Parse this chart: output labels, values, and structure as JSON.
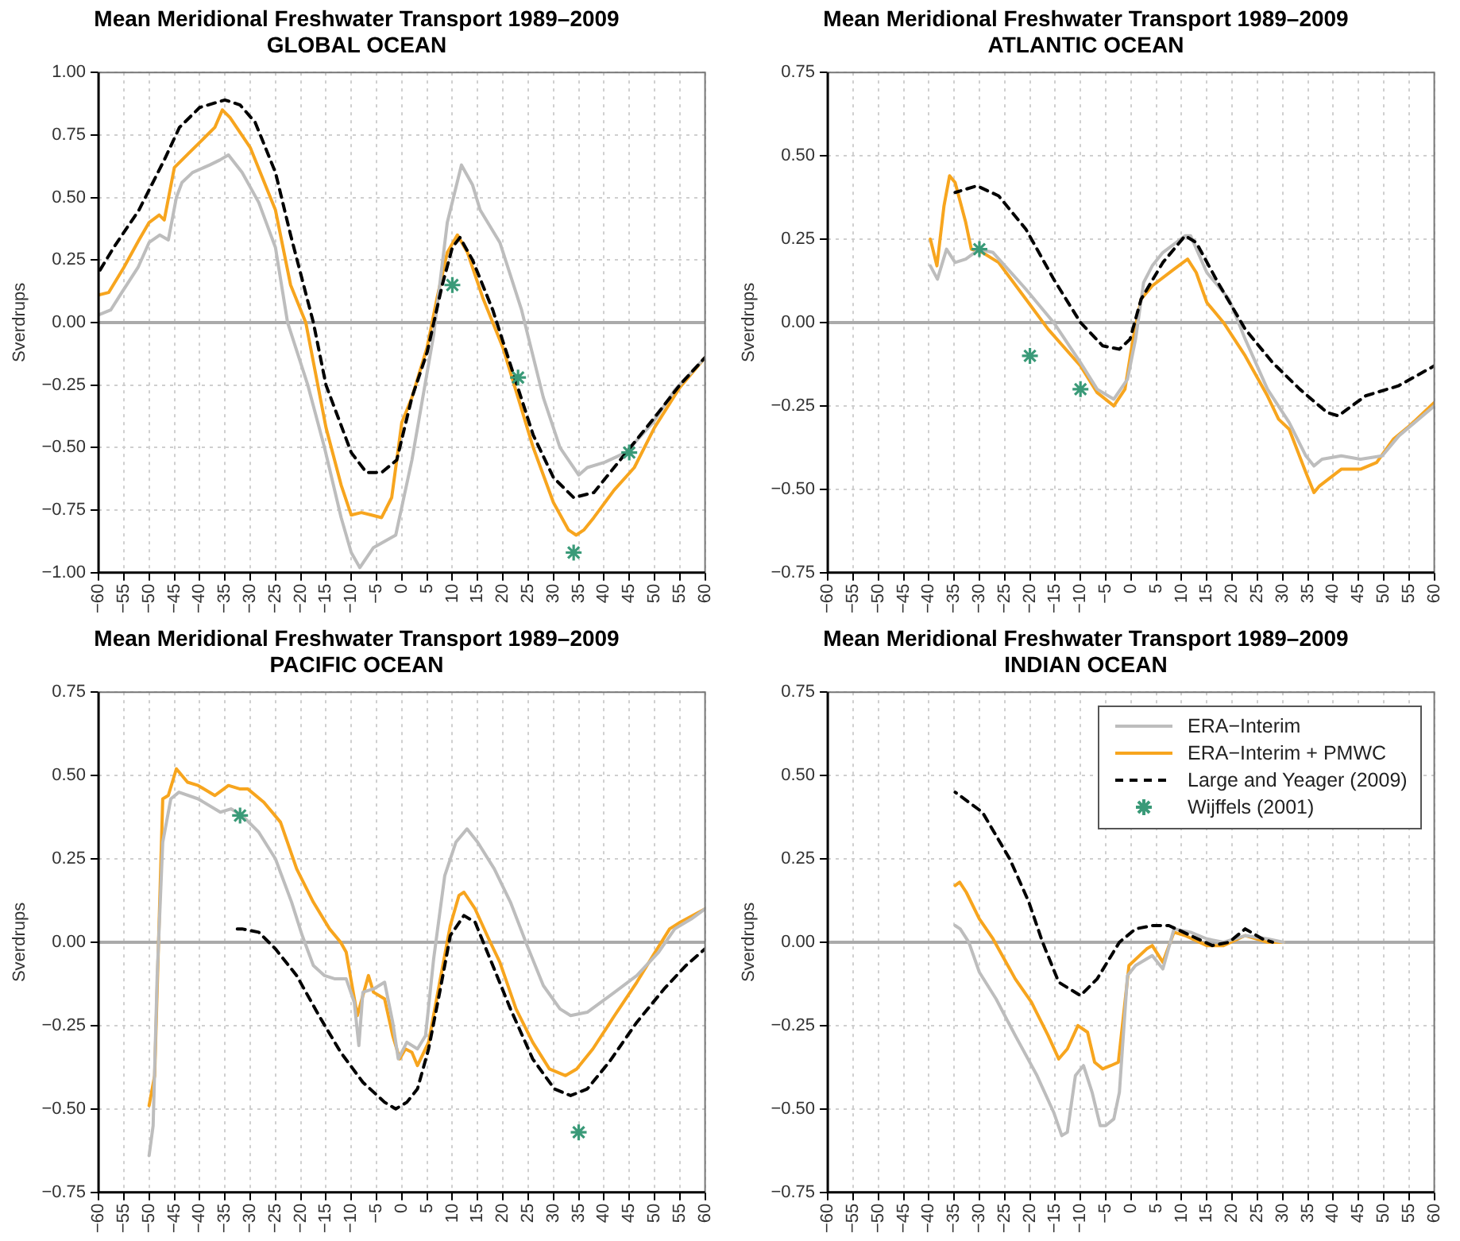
{
  "chart_data": [
    {
      "type": "line",
      "title": "Mean Meridional Freshwater Transport 1989–2009",
      "subtitle": "GLOBAL OCEAN",
      "ylabel": "Sverdrups",
      "xlim": [
        -60,
        60
      ],
      "ylim": [
        -1,
        1
      ],
      "xticks": [
        {
          "value": -60,
          "label": "−60"
        },
        {
          "value": -55,
          "label": "−55"
        },
        {
          "value": -50,
          "label": "−50"
        },
        {
          "value": -45,
          "label": "−45"
        },
        {
          "value": -40,
          "label": "−40"
        },
        {
          "value": -35,
          "label": "−35"
        },
        {
          "value": -30,
          "label": "−30"
        },
        {
          "value": -25,
          "label": "−25"
        },
        {
          "value": -20,
          "label": "−20"
        },
        {
          "value": -15,
          "label": "−15"
        },
        {
          "value": -10,
          "label": "−10"
        },
        {
          "value": -5,
          "label": "−5"
        },
        0,
        5,
        10,
        15,
        20,
        25,
        30,
        35,
        40,
        45,
        50,
        55,
        60
      ],
      "yticks": [
        {
          "value": 1,
          "label": "1.00"
        },
        {
          "value": 0.75,
          "label": "0.75"
        },
        {
          "value": 0.5,
          "label": "0.50"
        },
        {
          "value": 0.25,
          "label": "0.25"
        },
        {
          "value": 0,
          "label": "0.00"
        },
        {
          "value": -0.25,
          "label": "−0.25"
        },
        {
          "value": -0.5,
          "label": "−0.50"
        },
        {
          "value": -0.75,
          "label": "−0.75"
        },
        {
          "value": -1,
          "label": "−1.00"
        }
      ],
      "grid": true,
      "legend": false,
      "ref_lines": [
        {
          "axis": "y",
          "value": 0,
          "color": "#aaaaaa"
        }
      ],
      "series": [
        {
          "type": "line",
          "color": "#bdbdbd",
          "x": [
            -60,
            -57.6,
            -55.4,
            -52.2,
            -50,
            -47.9,
            -46.2,
            -44.6,
            -43.5,
            -41.4,
            -38,
            -36,
            -34.3,
            -31.6,
            -28.3,
            -25,
            -22.6,
            -18.6,
            -15.3,
            -12,
            -10,
            -8.3,
            -5.6,
            -1.2,
            2,
            6.3,
            9,
            11.8,
            14,
            15.5,
            19.4,
            23.7,
            28,
            31.3,
            35,
            36.7,
            40,
            44.3,
            49.7,
            54,
            60
          ],
          "values": [
            0.03,
            0.05,
            0.12,
            0.22,
            0.32,
            0.35,
            0.33,
            0.5,
            0.56,
            0.6,
            0.63,
            0.65,
            0.67,
            0.6,
            0.48,
            0.3,
            0,
            -0.25,
            -0.5,
            -0.78,
            -0.92,
            -0.98,
            -0.9,
            -0.85,
            -0.55,
            -0.05,
            0.4,
            0.63,
            0.55,
            0.45,
            0.32,
            0.05,
            -0.3,
            -0.5,
            -0.61,
            -0.58,
            -0.56,
            -0.52,
            -0.4,
            -0.27,
            -0.14
          ]
        },
        {
          "type": "line",
          "color": "#f7a51e",
          "x": [
            -60,
            -58,
            -55,
            -52,
            -50,
            -48,
            -47,
            -45,
            -42,
            -39,
            -37,
            -35.5,
            -34,
            -30,
            -25,
            -22,
            -19,
            -15,
            -12,
            -10,
            -8,
            -6,
            -4,
            -2,
            0,
            2,
            5,
            7,
            9,
            11,
            13,
            16,
            20,
            23,
            26,
            30,
            33,
            34.5,
            36,
            38,
            42,
            46,
            50,
            55,
            60
          ],
          "values": [
            0.11,
            0.12,
            0.22,
            0.33,
            0.4,
            0.43,
            0.41,
            0.62,
            0.68,
            0.74,
            0.78,
            0.85,
            0.82,
            0.7,
            0.45,
            0.15,
            0,
            -0.42,
            -0.65,
            -0.77,
            -0.76,
            -0.77,
            -0.78,
            -0.7,
            -0.4,
            -0.3,
            -0.1,
            0.1,
            0.28,
            0.35,
            0.28,
            0.1,
            -0.1,
            -0.3,
            -0.5,
            -0.72,
            -0.83,
            -0.85,
            -0.83,
            -0.78,
            -0.67,
            -0.58,
            -0.42,
            -0.26,
            -0.14
          ]
        },
        {
          "type": "line",
          "color": "#000000",
          "line_style": "dashed",
          "x": [
            -60,
            -57,
            -52,
            -47,
            -44,
            -40,
            -35,
            -32,
            -29,
            -25,
            -22,
            -17.5,
            -15,
            -10,
            -7,
            -4,
            -1,
            2,
            5,
            8,
            10,
            11.5,
            14,
            18,
            22,
            26,
            30,
            34,
            38,
            42,
            46,
            50,
            55,
            60
          ],
          "values": [
            0.2,
            0.3,
            0.45,
            0.65,
            0.78,
            0.86,
            0.89,
            0.87,
            0.8,
            0.6,
            0.35,
            0,
            -0.25,
            -0.52,
            -0.6,
            -0.6,
            -0.55,
            -0.3,
            -0.12,
            0.15,
            0.3,
            0.34,
            0.25,
            0.05,
            -0.2,
            -0.45,
            -0.62,
            -0.7,
            -0.68,
            -0.58,
            -0.48,
            -0.38,
            -0.25,
            -0.14
          ]
        },
        {
          "type": "scatter",
          "color": "#3a9a78",
          "marker": "cross",
          "x": [
            10,
            23,
            34,
            45
          ],
          "values": [
            0.15,
            -0.22,
            -0.92,
            -0.52
          ]
        }
      ]
    },
    {
      "type": "line",
      "title": "Mean Meridional Freshwater Transport 1989–2009",
      "subtitle": "ATLANTIC OCEAN",
      "ylabel": "Sverdrups",
      "xlim": [
        -60,
        60
      ],
      "ylim": [
        -0.75,
        0.75
      ],
      "xticks": [
        {
          "value": -60,
          "label": "−60"
        },
        {
          "value": -55,
          "label": "−55"
        },
        {
          "value": -50,
          "label": "−50"
        },
        {
          "value": -45,
          "label": "−45"
        },
        {
          "value": -40,
          "label": "−40"
        },
        {
          "value": -35,
          "label": "−35"
        },
        {
          "value": -30,
          "label": "−30"
        },
        {
          "value": -25,
          "label": "−25"
        },
        {
          "value": -20,
          "label": "−20"
        },
        {
          "value": -15,
          "label": "−15"
        },
        {
          "value": -10,
          "label": "−10"
        },
        {
          "value": -5,
          "label": "−5"
        },
        0,
        5,
        10,
        15,
        20,
        25,
        30,
        35,
        40,
        45,
        50,
        55,
        60
      ],
      "yticks": [
        {
          "value": 0.75,
          "label": "0.75"
        },
        {
          "value": 0.5,
          "label": "0.50"
        },
        {
          "value": 0.25,
          "label": "0.25"
        },
        {
          "value": 0,
          "label": "0.00"
        },
        {
          "value": -0.25,
          "label": "−0.25"
        },
        {
          "value": -0.5,
          "label": "−0.50"
        },
        {
          "value": -0.75,
          "label": "−0.75"
        }
      ],
      "grid": true,
      "legend": false,
      "ref_lines": [
        {
          "axis": "y",
          "value": 0,
          "color": "#aaaaaa"
        }
      ],
      "series": [
        {
          "type": "line",
          "color": "#bdbdbd",
          "x": [
            -39.7,
            -38.3,
            -36.5,
            -34.8,
            -32.7,
            -30,
            -27.3,
            -20.8,
            -15.3,
            -10,
            -6.7,
            -3.4,
            -0.7,
            0.9,
            2.5,
            4.2,
            6.3,
            10.7,
            11.8,
            15,
            19.4,
            22.6,
            27,
            31.3,
            34.6,
            36.2,
            37.8,
            41.6,
            45.4,
            49.7,
            53,
            60
          ],
          "values": [
            0.17,
            0.13,
            0.22,
            0.18,
            0.19,
            0.22,
            0.21,
            0.1,
            0,
            -0.12,
            -0.2,
            -0.23,
            -0.17,
            -0.05,
            0.12,
            0.17,
            0.21,
            0.26,
            0.26,
            0.15,
            0.07,
            -0.05,
            -0.2,
            -0.3,
            -0.4,
            -0.43,
            -0.41,
            -0.4,
            -0.41,
            -0.4,
            -0.34,
            -0.25
          ]
        },
        {
          "type": "line",
          "color": "#f7a51e",
          "x": [
            -39.7,
            -38.4,
            -37,
            -35.9,
            -34.8,
            -32.7,
            -31.6,
            -29.4,
            -26.2,
            -20.8,
            -16.4,
            -10,
            -6.7,
            -3.4,
            -1.2,
            0.4,
            2,
            4.2,
            8.5,
            11.2,
            12.9,
            15,
            18.3,
            22.6,
            27,
            29.2,
            31.3,
            34.6,
            36.2,
            37.3,
            41.6,
            45.4,
            48.6,
            51.9,
            55.1,
            60
          ],
          "values": [
            0.25,
            0.17,
            0.35,
            0.44,
            0.42,
            0.3,
            0.22,
            0.21,
            0.18,
            0.07,
            -0.02,
            -0.13,
            -0.21,
            -0.25,
            -0.2,
            -0.05,
            0.07,
            0.11,
            0.16,
            0.19,
            0.15,
            0.06,
            0,
            -0.1,
            -0.22,
            -0.29,
            -0.32,
            -0.45,
            -0.51,
            -0.49,
            -0.44,
            -0.44,
            -0.42,
            -0.35,
            -0.31,
            -0.24
          ]
        },
        {
          "type": "line",
          "color": "#000000",
          "line_style": "dashed",
          "x": [
            -34.8,
            -30.5,
            -26.2,
            -20.8,
            -15.3,
            -10,
            -5.6,
            -2.3,
            -0.2,
            2,
            6.3,
            10.7,
            12.9,
            17.2,
            22.6,
            28,
            33.4,
            38.8,
            41,
            46.4,
            52.9,
            60
          ],
          "values": [
            0.39,
            0.41,
            0.38,
            0.28,
            0.13,
            0,
            -0.07,
            -0.08,
            -0.05,
            0.07,
            0.18,
            0.26,
            0.24,
            0.12,
            -0.02,
            -0.12,
            -0.2,
            -0.27,
            -0.28,
            -0.22,
            -0.19,
            -0.13
          ]
        },
        {
          "type": "scatter",
          "color": "#3a9a78",
          "marker": "cross",
          "x": [
            -30,
            -20,
            -10
          ],
          "values": [
            0.22,
            -0.1,
            -0.2
          ]
        }
      ]
    },
    {
      "type": "line",
      "title": "Mean Meridional Freshwater Transport 1989–2009",
      "subtitle": "PACIFIC OCEAN",
      "ylabel": "Sverdrups",
      "xlim": [
        -60,
        60
      ],
      "ylim": [
        -0.75,
        0.75
      ],
      "xticks": [
        {
          "value": -60,
          "label": "−60"
        },
        {
          "value": -55,
          "label": "−55"
        },
        {
          "value": -50,
          "label": "−50"
        },
        {
          "value": -45,
          "label": "−45"
        },
        {
          "value": -40,
          "label": "−40"
        },
        {
          "value": -35,
          "label": "−35"
        },
        {
          "value": -30,
          "label": "−30"
        },
        {
          "value": -25,
          "label": "−25"
        },
        {
          "value": -20,
          "label": "−20"
        },
        {
          "value": -15,
          "label": "−15"
        },
        {
          "value": -10,
          "label": "−10"
        },
        {
          "value": -5,
          "label": "−5"
        },
        0,
        5,
        10,
        15,
        20,
        25,
        30,
        35,
        40,
        45,
        50,
        55,
        60
      ],
      "yticks": [
        {
          "value": 0.75,
          "label": "0.75"
        },
        {
          "value": 0.5,
          "label": "0.50"
        },
        {
          "value": 0.25,
          "label": "0.25"
        },
        {
          "value": 0,
          "label": "0.00"
        },
        {
          "value": -0.25,
          "label": "−0.25"
        },
        {
          "value": -0.5,
          "label": "−0.50"
        },
        {
          "value": -0.75,
          "label": "−0.75"
        }
      ],
      "grid": true,
      "legend": false,
      "ref_lines": [
        {
          "axis": "y",
          "value": 0,
          "color": "#aaaaaa"
        }
      ],
      "series": [
        {
          "type": "line",
          "color": "#bdbdbd",
          "x": [
            -50,
            -49.2,
            -48.4,
            -47.3,
            -45.7,
            -44.1,
            -40.3,
            -35.9,
            -33.8,
            -31.6,
            -28.3,
            -25,
            -21.8,
            -19.7,
            -17.5,
            -15.3,
            -13.2,
            -11,
            -9.4,
            -8.5,
            -7.7,
            -5.6,
            -3.4,
            -1.8,
            -0.7,
            1,
            3.1,
            4.7,
            6.3,
            8.5,
            10.7,
            12.9,
            15,
            18.3,
            21.5,
            24.8,
            28,
            31.3,
            33.4,
            36.7,
            42.1,
            46.5,
            50.8,
            54,
            57.3,
            60
          ],
          "values": [
            -0.64,
            -0.55,
            -0.1,
            0.3,
            0.43,
            0.45,
            0.43,
            0.39,
            0.4,
            0.38,
            0.33,
            0.25,
            0.12,
            0.02,
            -0.07,
            -0.1,
            -0.11,
            -0.11,
            -0.18,
            -0.31,
            -0.15,
            -0.14,
            -0.12,
            -0.24,
            -0.35,
            -0.3,
            -0.32,
            -0.28,
            -0.05,
            0.2,
            0.3,
            0.34,
            0.3,
            0.22,
            0.12,
            -0.01,
            -0.13,
            -0.2,
            -0.22,
            -0.21,
            -0.15,
            -0.1,
            -0.03,
            0.04,
            0.07,
            0.1
          ]
        },
        {
          "type": "line",
          "color": "#f7a51e",
          "x": [
            -50,
            -48.9,
            -47.3,
            -46.2,
            -44.6,
            -42.4,
            -40.3,
            -37,
            -34.3,
            -32.1,
            -30.5,
            -27.3,
            -24,
            -20.8,
            -17.5,
            -14.3,
            -12.1,
            -11,
            -8.8,
            -6.6,
            -5.6,
            -3.4,
            -1.8,
            -0.4,
            0.7,
            2,
            3.1,
            5.3,
            7.5,
            9.6,
            11.3,
            12.3,
            14.5,
            17.2,
            19.4,
            22.6,
            25.9,
            29.2,
            32.4,
            34.6,
            37.8,
            42.1,
            46.5,
            49.7,
            53,
            55.1,
            60
          ],
          "values": [
            -0.49,
            -0.4,
            0.43,
            0.44,
            0.52,
            0.48,
            0.47,
            0.44,
            0.47,
            0.46,
            0.46,
            0.42,
            0.36,
            0.22,
            0.12,
            0.04,
            0,
            -0.03,
            -0.22,
            -0.1,
            -0.15,
            -0.17,
            -0.28,
            -0.35,
            -0.32,
            -0.33,
            -0.37,
            -0.3,
            -0.12,
            0.05,
            0.14,
            0.15,
            0.1,
            0.01,
            -0.06,
            -0.2,
            -0.3,
            -0.38,
            -0.4,
            -0.38,
            -0.32,
            -0.22,
            -0.12,
            -0.04,
            0.04,
            0.06,
            0.1
          ]
        },
        {
          "type": "line",
          "color": "#000000",
          "line_style": "dashed",
          "x": [
            -33.8,
            -31.6,
            -28.3,
            -25,
            -20.8,
            -16.4,
            -12.1,
            -7.7,
            -3.4,
            -1.2,
            1,
            3.1,
            5.3,
            7.5,
            9.6,
            12.3,
            14.5,
            17.2,
            21.5,
            25.9,
            30.2,
            33.4,
            36.7,
            41,
            46.5,
            51.9,
            56.2,
            60
          ],
          "values": [
            0.04,
            0.04,
            0.03,
            -0.02,
            -0.1,
            -0.22,
            -0.33,
            -0.42,
            -0.48,
            -0.5,
            -0.48,
            -0.44,
            -0.32,
            -0.15,
            0.02,
            0.08,
            0.06,
            -0.04,
            -0.2,
            -0.35,
            -0.44,
            -0.46,
            -0.44,
            -0.36,
            -0.24,
            -0.14,
            -0.07,
            -0.02
          ]
        },
        {
          "type": "scatter",
          "color": "#3a9a78",
          "marker": "cross",
          "x": [
            -32,
            35
          ],
          "values": [
            0.38,
            -0.57
          ]
        }
      ]
    },
    {
      "type": "line",
      "title": "Mean Meridional Freshwater Transport 1989–2009",
      "subtitle": "INDIAN OCEAN",
      "ylabel": "Sverdrups",
      "xlim": [
        -60,
        60
      ],
      "ylim": [
        -0.75,
        0.75
      ],
      "xticks": [
        {
          "value": -60,
          "label": "−60"
        },
        {
          "value": -55,
          "label": "−55"
        },
        {
          "value": -50,
          "label": "−50"
        },
        {
          "value": -45,
          "label": "−45"
        },
        {
          "value": -40,
          "label": "−40"
        },
        {
          "value": -35,
          "label": "−35"
        },
        {
          "value": -30,
          "label": "−30"
        },
        {
          "value": -25,
          "label": "−25"
        },
        {
          "value": -20,
          "label": "−20"
        },
        {
          "value": -15,
          "label": "−15"
        },
        {
          "value": -10,
          "label": "−10"
        },
        {
          "value": -5,
          "label": "−5"
        },
        0,
        5,
        10,
        15,
        20,
        25,
        30,
        35,
        40,
        45,
        50,
        55,
        60
      ],
      "yticks": [
        {
          "value": 0.75,
          "label": "0.75"
        },
        {
          "value": 0.5,
          "label": "0.50"
        },
        {
          "value": 0.25,
          "label": "0.25"
        },
        {
          "value": 0,
          "label": "0.00"
        },
        {
          "value": -0.25,
          "label": "−0.25"
        },
        {
          "value": -0.5,
          "label": "−0.50"
        },
        {
          "value": -0.75,
          "label": "−0.75"
        }
      ],
      "grid": true,
      "legend": "top right",
      "ref_lines": [
        {
          "axis": "y",
          "value": 0,
          "color": "#aaaaaa"
        }
      ],
      "series": [
        {
          "name": "ERA−Interim",
          "type": "line",
          "color": "#bdbdbd",
          "x": [
            -34.8,
            -33.8,
            -32.1,
            -30,
            -26.7,
            -22.9,
            -18.6,
            -15.3,
            -13.7,
            -12.6,
            -11,
            -9.4,
            -7.7,
            -6.1,
            -5,
            -3.4,
            -2.3,
            -0.7,
            0.9,
            4.2,
            6.3,
            8.5,
            11.8,
            15,
            18.3,
            22.6,
            27,
            30.2
          ],
          "values": [
            0.05,
            0.04,
            0,
            -0.09,
            -0.17,
            -0.28,
            -0.4,
            -0.51,
            -0.58,
            -0.57,
            -0.4,
            -0.37,
            -0.45,
            -0.55,
            -0.55,
            -0.53,
            -0.45,
            -0.1,
            -0.07,
            -0.04,
            -0.08,
            0.04,
            0.03,
            0.01,
            0,
            0.02,
            0.01,
            0
          ]
        },
        {
          "name": "ERA−Interim + PMWC",
          "type": "line",
          "color": "#f7a51e",
          "x": [
            -34.8,
            -33.9,
            -32.6,
            -30,
            -27.3,
            -22.9,
            -19.7,
            -16.4,
            -14.3,
            -12.6,
            -10.5,
            -8.6,
            -7.2,
            -5.6,
            -4,
            -2.5,
            -0.4,
            3.1,
            4.2,
            6.3,
            8.5,
            10.7,
            15,
            18.3,
            22.6,
            27,
            30.2
          ],
          "values": [
            0.17,
            0.18,
            0.15,
            0.07,
            0.01,
            -0.11,
            -0.18,
            -0.28,
            -0.35,
            -0.32,
            -0.25,
            -0.27,
            -0.36,
            -0.38,
            -0.37,
            -0.36,
            -0.07,
            -0.02,
            -0.01,
            -0.06,
            0.03,
            0.02,
            -0.01,
            -0.01,
            0.02,
            0,
            0
          ]
        },
        {
          "name": "Large and Yeager (2009)",
          "type": "line",
          "color": "#000000",
          "line_style": "dashed",
          "x": [
            -34.8,
            -29.4,
            -24,
            -20.2,
            -17.5,
            -14.3,
            -10,
            -6.7,
            -2.3,
            0.9,
            4.2,
            7.5,
            11.8,
            16.1,
            19.4,
            22.6,
            26,
            28
          ],
          "values": [
            0.45,
            0.39,
            0.25,
            0.12,
            0,
            -0.12,
            -0.16,
            -0.11,
            0,
            0.04,
            0.05,
            0.05,
            0.02,
            -0.01,
            0,
            0.04,
            0.01,
            0
          ]
        },
        {
          "name": "Wijffels (2001)",
          "type": "scatter",
          "color": "#3a9a78",
          "marker": "cross"
        }
      ]
    }
  ]
}
